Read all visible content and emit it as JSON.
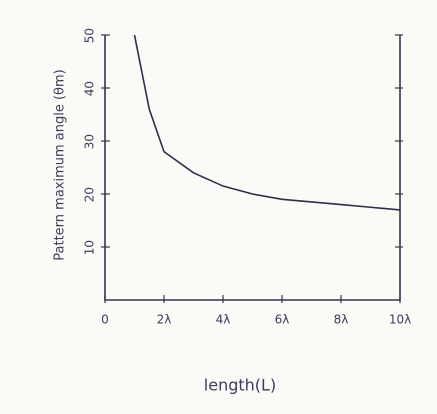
{
  "chart_data": {
    "type": "line",
    "y_label": "Pattern maximum angle (θm)",
    "x_label": "length(L)",
    "x": [
      1,
      1.5,
      2,
      3,
      4,
      5,
      6,
      7,
      8,
      9,
      10
    ],
    "series": [
      {
        "color": "#2e2e4a",
        "values": [
          50,
          36,
          28,
          24,
          21.5,
          20,
          19,
          18.5,
          18,
          17.5,
          17
        ]
      }
    ],
    "xlim": [
      0,
      10
    ],
    "xticks": [
      0,
      {
        "value": 2,
        "label": "2λ"
      },
      {
        "value": 4,
        "label": "4λ"
      },
      {
        "value": 6,
        "label": "6λ"
      },
      {
        "value": 8,
        "label": "8λ"
      },
      {
        "value": 10,
        "label": "10λ"
      }
    ],
    "ylim": [
      0,
      50
    ],
    "yticks": [
      10,
      20,
      30,
      40,
      50
    ]
  }
}
